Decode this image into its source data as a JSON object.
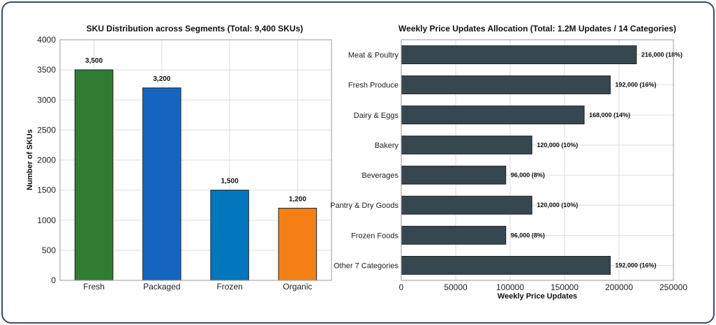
{
  "chart_data": [
    {
      "type": "bar",
      "title": "SKU Distribution across Segments (Total: 9,400 SKUs)",
      "xlabel": "",
      "ylabel": "Number of SKUs",
      "ylim": [
        0,
        4000
      ],
      "yticks": [
        0,
        500,
        1000,
        1500,
        2000,
        2500,
        3000,
        3500,
        4000
      ],
      "grid": true,
      "categories": [
        "Fresh",
        "Packaged",
        "Frozen",
        "Organic"
      ],
      "values": [
        3500,
        3200,
        1500,
        1200
      ],
      "data_labels": [
        "3,500",
        "3,200",
        "1,500",
        "1,200"
      ],
      "colors": [
        "#2e7d32",
        "#1565c0",
        "#0277bd",
        "#f57f17"
      ]
    },
    {
      "type": "bar",
      "orientation": "horizontal",
      "title": "Weekly Price Updates Allocation (Total: 1.2M Updates / 14 Categories)",
      "xlabel": "Weekly Price Updates",
      "ylabel": "",
      "xlim": [
        0,
        250000
      ],
      "xticks": [
        0,
        50000,
        100000,
        150000,
        200000,
        250000
      ],
      "grid": true,
      "categories": [
        "Meat & Poultry",
        "Fresh Produce",
        "Dairy & Eggs",
        "Bakery",
        "Beverages",
        "Pantry & Dry Goods",
        "Frozen Foods",
        "Other 7 Categories"
      ],
      "values": [
        216000,
        192000,
        168000,
        120000,
        96000,
        120000,
        96000,
        192000
      ],
      "data_labels": [
        "216,000 (18%)",
        "192,000 (16%)",
        "168,000 (14%)",
        "120,000 (10%)",
        "96,000 (8%)",
        "120,000 (10%)",
        "96,000 (8%)",
        "192,000 (16%)"
      ],
      "color": "#37474f"
    }
  ]
}
